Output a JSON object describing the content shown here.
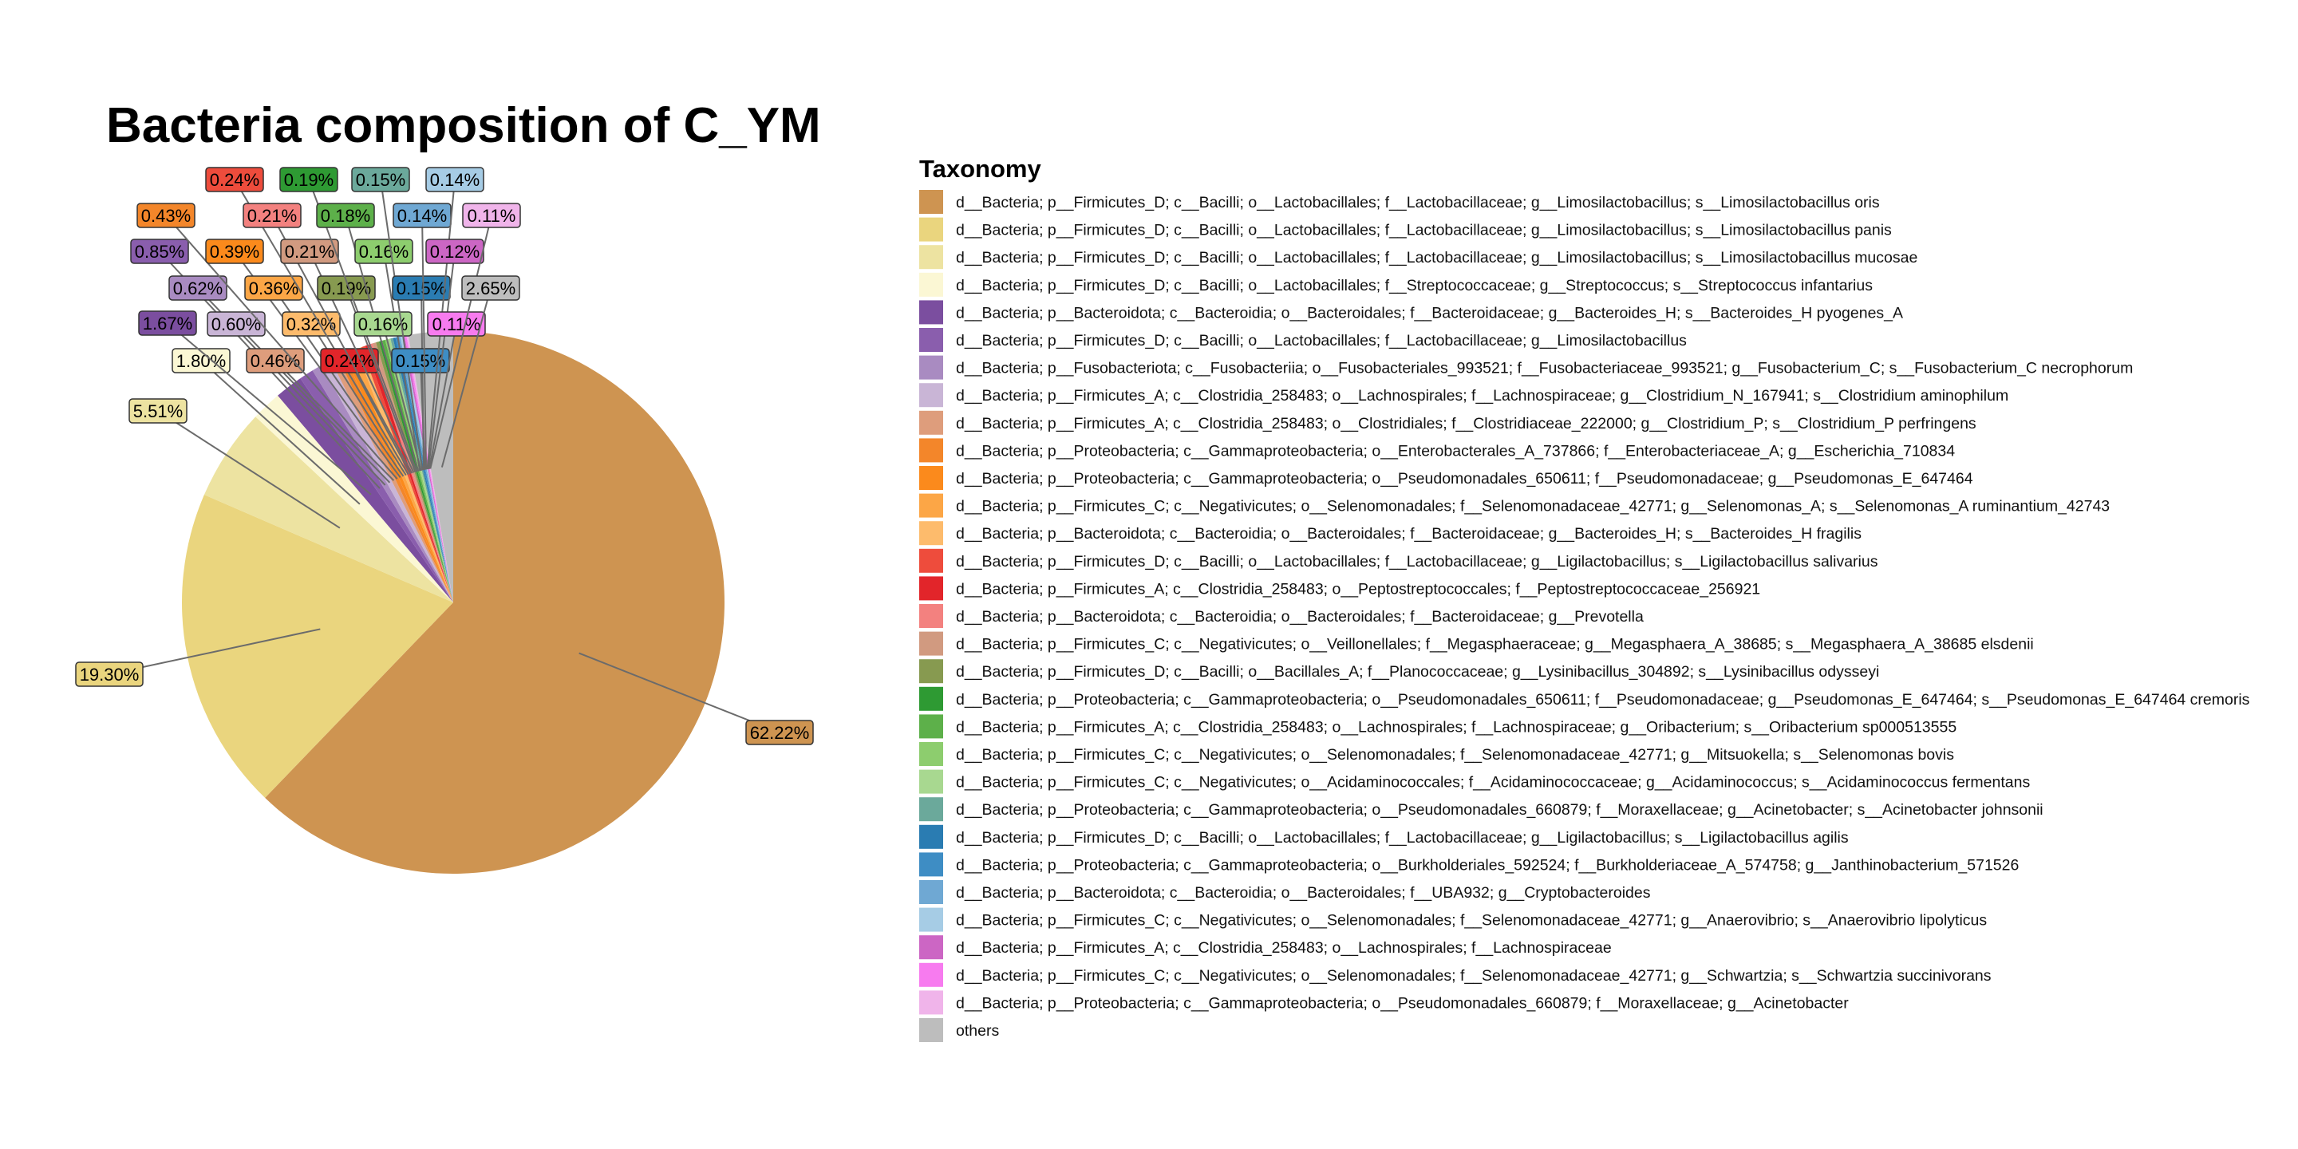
{
  "chart_data": {
    "type": "pie",
    "title": "Bacteria composition of C_YM",
    "legend_title": "Taxonomy",
    "legend_position": "right",
    "slices": [
      {
        "label": "d__Bacteria; p__Firmicutes_D; c__Bacilli; o__Lactobacillales; f__Lactobacillaceae; g__Limosilactobacillus; s__Limosilactobacillus oris",
        "value": 62.22,
        "display": "62.22%",
        "color": "#CE9451"
      },
      {
        "label": "d__Bacteria; p__Firmicutes_D; c__Bacilli; o__Lactobacillales; f__Lactobacillaceae; g__Limosilactobacillus; s__Limosilactobacillus panis",
        "value": 19.3,
        "display": "19.30%",
        "color": "#EAD57E"
      },
      {
        "label": "d__Bacteria; p__Firmicutes_D; c__Bacilli; o__Lactobacillales; f__Lactobacillaceae; g__Limosilactobacillus; s__Limosilactobacillus mucosae",
        "value": 5.51,
        "display": "5.51%",
        "color": "#EDE3A1"
      },
      {
        "label": "d__Bacteria; p__Firmicutes_D; c__Bacilli; o__Lactobacillales; f__Streptococcaceae; g__Streptococcus; s__Streptococcus infantarius",
        "value": 1.8,
        "display": "1.80%",
        "color": "#FBF7D4"
      },
      {
        "label": "d__Bacteria; p__Bacteroidota; c__Bacteroidia; o__Bacteroidales; f__Bacteroidaceae; g__Bacteroides_H; s__Bacteroides_H pyogenes_A",
        "value": 1.67,
        "display": "1.67%",
        "color": "#7B4E9F"
      },
      {
        "label": "d__Bacteria; p__Firmicutes_D; c__Bacilli; o__Lactobacillales; f__Lactobacillaceae; g__Limosilactobacillus",
        "value": 0.85,
        "display": "0.85%",
        "color": "#8A5EAD"
      },
      {
        "label": "d__Bacteria; p__Fusobacteriota; c__Fusobacteriia; o__Fusobacteriales_993521; f__Fusobacteriaceae_993521; g__Fusobacterium_C; s__Fusobacterium_C necrophorum",
        "value": 0.62,
        "display": "0.62%",
        "color": "#A98BC1"
      },
      {
        "label": "d__Bacteria; p__Firmicutes_A; c__Clostridia_258483; o__Lachnospirales; f__Lachnospiraceae; g__Clostridium_N_167941; s__Clostridium aminophilum",
        "value": 0.6,
        "display": "0.60%",
        "color": "#C9B5D6"
      },
      {
        "label": "d__Bacteria; p__Firmicutes_A; c__Clostridia_258483; o__Clostridiales; f__Clostridiaceae_222000; g__Clostridium_P; s__Clostridium_P perfringens",
        "value": 0.46,
        "display": "0.46%",
        "color": "#DE9D7C"
      },
      {
        "label": "d__Bacteria; p__Proteobacteria; c__Gammaproteobacteria; o__Enterobacterales_A_737866; f__Enterobacteriaceae_A; g__Escherichia_710834",
        "value": 0.43,
        "display": "0.43%",
        "color": "#F3862A"
      },
      {
        "label": "d__Bacteria; p__Proteobacteria; c__Gammaproteobacteria; o__Pseudomonadales_650611; f__Pseudomonadaceae; g__Pseudomonas_E_647464",
        "value": 0.39,
        "display": "0.39%",
        "color": "#FB8A1C"
      },
      {
        "label": "d__Bacteria; p__Firmicutes_C; c__Negativicutes; o__Selenomonadales; f__Selenomonadaceae_42771; g__Selenomonas_A; s__Selenomonas_A ruminantium_42743",
        "value": 0.36,
        "display": "0.36%",
        "color": "#FCA646"
      },
      {
        "label": "d__Bacteria; p__Bacteroidota; c__Bacteroidia; o__Bacteroidales; f__Bacteroidaceae; g__Bacteroides_H; s__Bacteroides_H fragilis",
        "value": 0.32,
        "display": "0.32%",
        "color": "#FDBB6C"
      },
      {
        "label": "d__Bacteria; p__Firmicutes_D; c__Bacilli; o__Lactobacillales; f__Lactobacillaceae; g__Ligilactobacillus; s__Ligilactobacillus salivarius",
        "value": 0.24,
        "display": "0.24%",
        "color": "#EE4C3C"
      },
      {
        "label": "d__Bacteria; p__Firmicutes_A; c__Clostridia_258483; o__Peptostreptococcales; f__Peptostreptococcaceae_256921",
        "value": 0.24,
        "display": "0.24%",
        "color": "#E2252A"
      },
      {
        "label": "d__Bacteria; p__Bacteroidota; c__Bacteroidia; o__Bacteroidales; f__Bacteroidaceae; g__Prevotella",
        "value": 0.21,
        "display": "0.21%",
        "color": "#F3817F"
      },
      {
        "label": "d__Bacteria; p__Firmicutes_C; c__Negativicutes; o__Veillonellales; f__Megasphaeraceae; g__Megasphaera_A_38685; s__Megasphaera_A_38685 elsdenii",
        "value": 0.21,
        "display": "0.21%",
        "color": "#D19A80"
      },
      {
        "label": "d__Bacteria; p__Firmicutes_D; c__Bacilli; o__Bacillales_A; f__Planococcaceae; g__Lysinibacillus_304892; s__Lysinibacillus odysseyi",
        "value": 0.19,
        "display": "0.19%",
        "color": "#879A50"
      },
      {
        "label": "d__Bacteria; p__Proteobacteria; c__Gammaproteobacteria; o__Pseudomonadales_650611; f__Pseudomonadaceae; g__Pseudomonas_E_647464; s__Pseudomonas_E_647464 cremoris",
        "value": 0.19,
        "display": "0.19%",
        "color": "#2E9A33"
      },
      {
        "label": "d__Bacteria; p__Firmicutes_A; c__Clostridia_258483; o__Lachnospirales; f__Lachnospiraceae; g__Oribacterium; s__Oribacterium sp000513555",
        "value": 0.18,
        "display": "0.18%",
        "color": "#5DB04A"
      },
      {
        "label": "d__Bacteria; p__Firmicutes_C; c__Negativicutes; o__Selenomonadales; f__Selenomonadaceae_42771; g__Mitsuokella; s__Selenomonas bovis",
        "value": 0.16,
        "display": "0.16%",
        "color": "#8DCD6E"
      },
      {
        "label": "d__Bacteria; p__Firmicutes_C; c__Negativicutes; o__Acidaminococcales; f__Acidaminococcaceae; g__Acidaminococcus; s__Acidaminococcus fermentans",
        "value": 0.16,
        "display": "0.16%",
        "color": "#A8D890"
      },
      {
        "label": "d__Bacteria; p__Proteobacteria; c__Gammaproteobacteria; o__Pseudomonadales_660879; f__Moraxellaceae; g__Acinetobacter; s__Acinetobacter johnsonii",
        "value": 0.15,
        "display": "0.15%",
        "color": "#6BA99B"
      },
      {
        "label": "d__Bacteria; p__Firmicutes_D; c__Bacilli; o__Lactobacillales; f__Lactobacillaceae; g__Ligilactobacillus; s__Ligilactobacillus agilis",
        "value": 0.15,
        "display": "0.15%",
        "color": "#2A7CB2"
      },
      {
        "label": "d__Bacteria; p__Proteobacteria; c__Gammaproteobacteria; o__Burkholderiales_592524; f__Burkholderiaceae_A_574758; g__Janthinobacterium_571526",
        "value": 0.15,
        "display": "0.15%",
        "color": "#3E8DC4"
      },
      {
        "label": "d__Bacteria; p__Bacteroidota; c__Bacteroidia; o__Bacteroidales; f__UBA932; g__Cryptobacteroides",
        "value": 0.14,
        "display": "0.14%",
        "color": "#6FA8D3"
      },
      {
        "label": "d__Bacteria; p__Firmicutes_C; c__Negativicutes; o__Selenomonadales; f__Selenomonadaceae_42771; g__Anaerovibrio; s__Anaerovibrio lipolyticus",
        "value": 0.14,
        "display": "0.14%",
        "color": "#A6CCE5"
      },
      {
        "label": "d__Bacteria; p__Firmicutes_A; c__Clostridia_258483; o__Lachnospirales; f__Lachnospiraceae",
        "value": 0.12,
        "display": "0.12%",
        "color": "#CC66C4"
      },
      {
        "label": "d__Bacteria; p__Firmicutes_C; c__Negativicutes; o__Selenomonadales; f__Selenomonadaceae_42771; g__Schwartzia; s__Schwartzia succinivorans",
        "value": 0.11,
        "display": "0.11%",
        "color": "#F77BEF"
      },
      {
        "label": "d__Bacteria; p__Proteobacteria; c__Gammaproteobacteria; o__Pseudomonadales_660879; f__Moraxellaceae; g__Acinetobacter",
        "value": 0.11,
        "display": "0.11%",
        "color": "#F0B4EA"
      },
      {
        "label": "others",
        "value": 2.65,
        "display": "2.65%",
        "color": "#BDBDBD"
      }
    ]
  }
}
